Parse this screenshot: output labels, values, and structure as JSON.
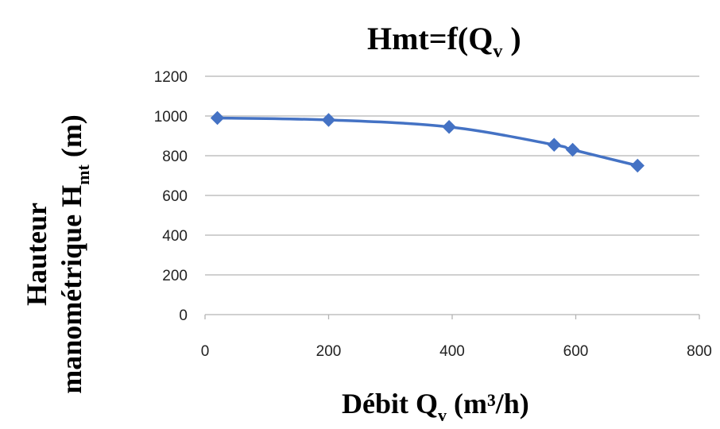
{
  "chart_data": {
    "type": "line",
    "title": {
      "main": "Hmt=f(Q",
      "sub": "v",
      "end": " )"
    },
    "xlabel": {
      "main": "Débit Q",
      "sub": "v",
      "end": " (m³/h)"
    },
    "ylabel": {
      "line1": "Hauteur",
      "line2_main": "manométrique H",
      "line2_sub": "mt",
      "line2_end": " (m)"
    },
    "xlim": [
      0,
      800
    ],
    "ylim": [
      0,
      1200
    ],
    "x_ticks": [
      0,
      200,
      400,
      600,
      800
    ],
    "y_ticks": [
      0,
      200,
      400,
      600,
      800,
      1000,
      1200
    ],
    "grid": "horizontal",
    "series": [
      {
        "x": [
          20,
          200,
          395,
          565,
          595,
          700
        ],
        "y": [
          990,
          980,
          945,
          855,
          830,
          750
        ],
        "color": "#4472C4",
        "marker": "diamond"
      }
    ]
  }
}
